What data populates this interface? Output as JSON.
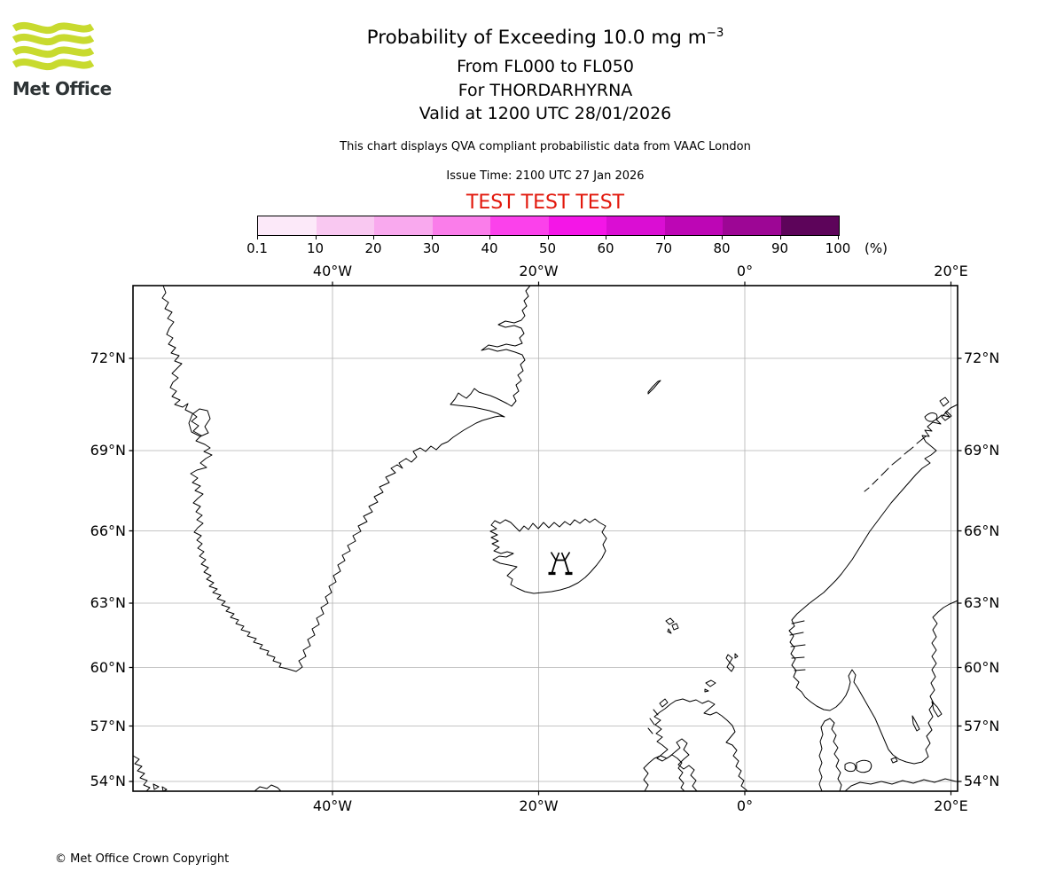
{
  "header": {
    "logo_text": "Met Office",
    "title_main": "Probability of Exceeding 10.0 mg m",
    "title_superscript": "−3",
    "subtitle_flight_levels": "From FL000 to FL050",
    "subtitle_volcano": "For THORDARHYRNA",
    "subtitle_valid_time": "Valid at 1200 UTC 28/01/2026",
    "description": "This chart displays QVA compliant probabilistic data from VAAC London",
    "issue_time": "Issue Time: 2100 UTC 27 Jan 2026",
    "test_banner": "TEST TEST TEST",
    "test_banner_color": "#e2180c"
  },
  "colorbar": {
    "unit_label": "(%)",
    "tick_labels": [
      "0.1",
      "10",
      "20",
      "30",
      "40",
      "50",
      "60",
      "70",
      "80",
      "90",
      "100"
    ],
    "segment_colors": [
      "#fce9f9",
      "#f9c8f1",
      "#f9a9ee",
      "#fa7dea",
      "#fb41eb",
      "#f416e7",
      "#da0ed3",
      "#bd06b5",
      "#9d0695",
      "#5d045a"
    ]
  },
  "map": {
    "x_tick_labels": [
      "40°W",
      "20°W",
      "0°",
      "20°E"
    ],
    "y_tick_labels": [
      "72°N",
      "69°N",
      "66°N",
      "63°N",
      "60°N",
      "57°N",
      "54°N"
    ]
  },
  "footer": {
    "copyright": "© Met Office Crown Copyright"
  },
  "chart_data": {
    "type": "map",
    "title": "Probability of Exceeding 10.0 mg m−3",
    "subtitle": [
      "From FL000 to FL050",
      "For THORDARHYRNA",
      "Valid at 1200 UTC 28/01/2026"
    ],
    "colorbar_percent_levels": [
      0.1,
      10,
      20,
      30,
      40,
      50,
      60,
      70,
      80,
      90,
      100
    ],
    "colorbar_unit": "%",
    "lon_gridlines_deg": [
      -40,
      -20,
      0,
      20
    ],
    "lat_gridlines_deg": [
      72,
      69,
      66,
      63,
      60,
      57,
      54
    ],
    "region": "North Atlantic (Greenland, Iceland, British Isles, Scandinavia)",
    "volcano_symbol_location": "Iceland"
  }
}
